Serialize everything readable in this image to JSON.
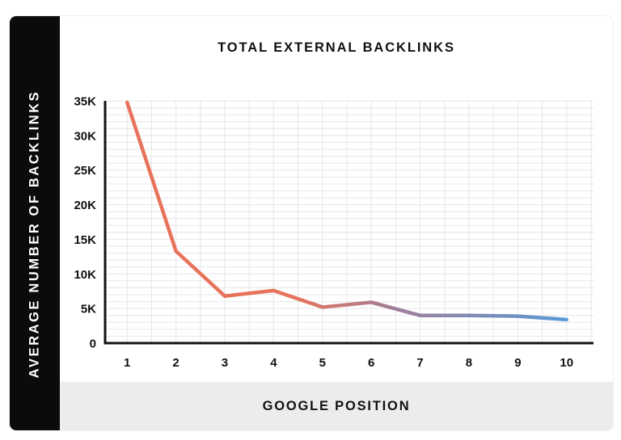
{
  "chart_data": {
    "type": "line",
    "title": "TOTAL EXTERNAL BACKLINKS",
    "xlabel": "GOOGLE POSITION",
    "ylabel": "AVERAGE NUMBER OF BACKLINKS",
    "x": [
      1,
      2,
      3,
      4,
      5,
      6,
      7,
      8,
      9,
      10
    ],
    "x_tick_labels": [
      "1",
      "2",
      "3",
      "4",
      "5",
      "6",
      "7",
      "8",
      "9",
      "10"
    ],
    "y_ticks": [
      0,
      5000,
      10000,
      15000,
      20000,
      25000,
      30000,
      35000
    ],
    "y_tick_labels": [
      "0",
      "5K",
      "10K",
      "15K",
      "20K",
      "25K",
      "30K",
      "35K"
    ],
    "ylim": [
      0,
      35000
    ],
    "grid": true,
    "series": [
      {
        "values": [
          34800,
          13300,
          6800,
          7600,
          5200,
          5900,
          4000,
          4000,
          3900,
          3400
        ]
      }
    ],
    "colors": {
      "line_start": "#e8735c",
      "line_mid": "#9e7f9c",
      "line_end": "#5a9ad6",
      "grid": "#e6e6e6",
      "axis": "#111111"
    }
  }
}
